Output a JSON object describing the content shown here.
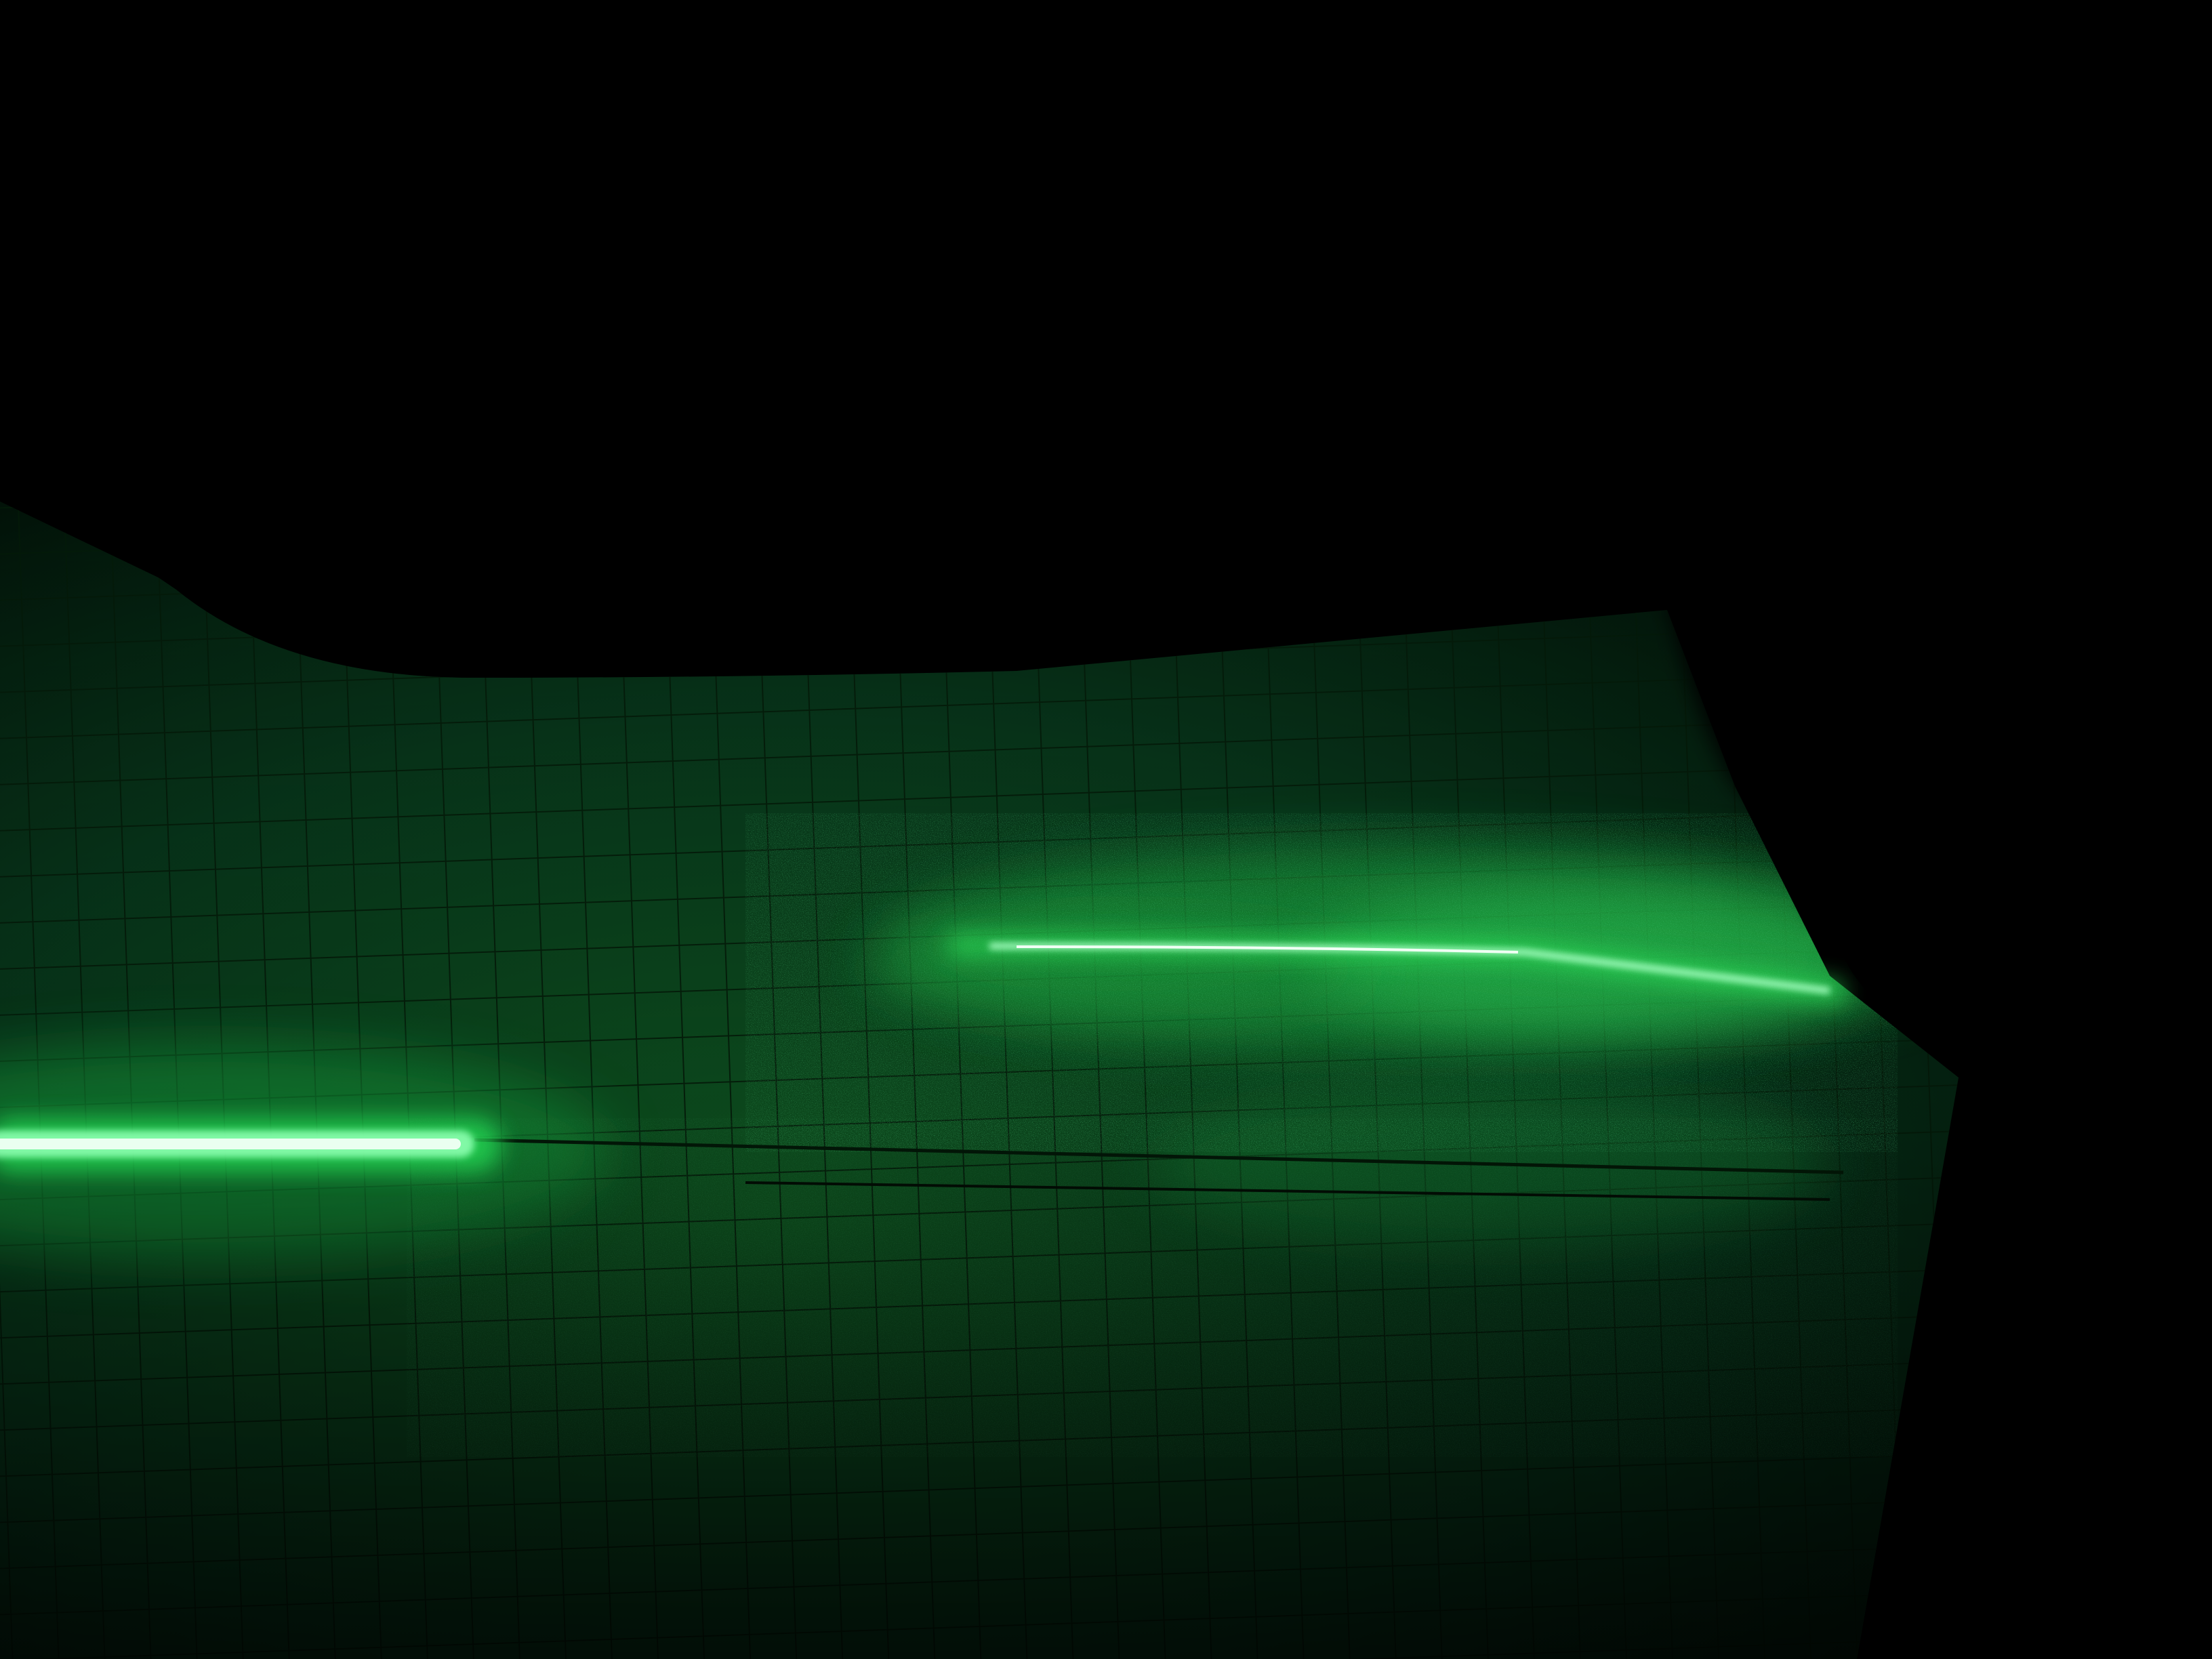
{
  "photo": {
    "subject": "laser-beam-on-grid-paper",
    "colors": {
      "background": "#000000",
      "grid_surface": "#0a3d16",
      "grid_line": "#031a08",
      "glow": "#1fd24e",
      "beam_core": "#eafff0",
      "shadow": "#000000"
    }
  }
}
